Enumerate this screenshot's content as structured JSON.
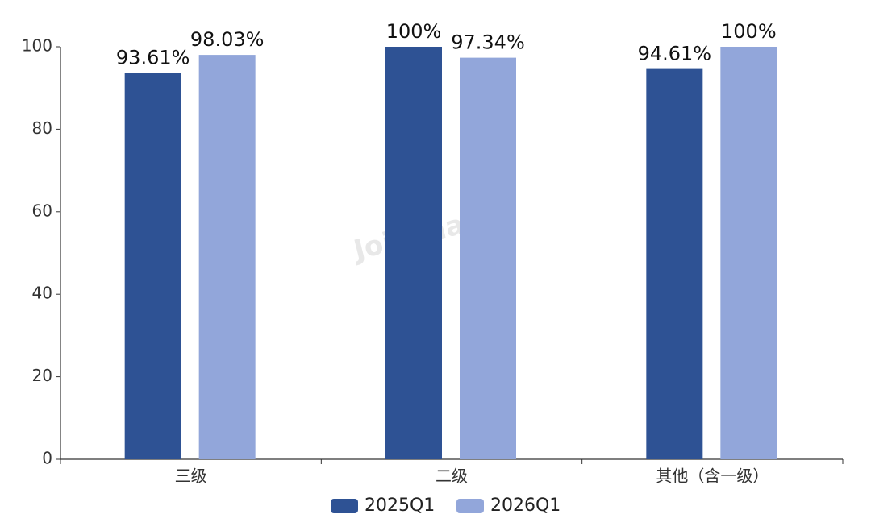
{
  "chart_data": {
    "type": "bar",
    "categories": [
      "三级",
      "二级",
      "其他（含一级）"
    ],
    "series": [
      {
        "name": "2025Q1",
        "color": "#2e5294",
        "values": [
          93.61,
          100,
          94.61
        ],
        "value_labels": [
          "93.61%",
          "100%",
          "94.61%"
        ]
      },
      {
        "name": "2026Q1",
        "color": "#92a6da",
        "values": [
          98.03,
          97.34,
          100
        ],
        "value_labels": [
          "98.03%",
          "97.34%",
          "100%"
        ]
      }
    ],
    "ylim": [
      0,
      100
    ],
    "yticks": [
      0,
      20,
      40,
      60,
      80,
      100
    ],
    "grid": false,
    "legend": "bottom",
    "watermark": "Joinchain"
  }
}
